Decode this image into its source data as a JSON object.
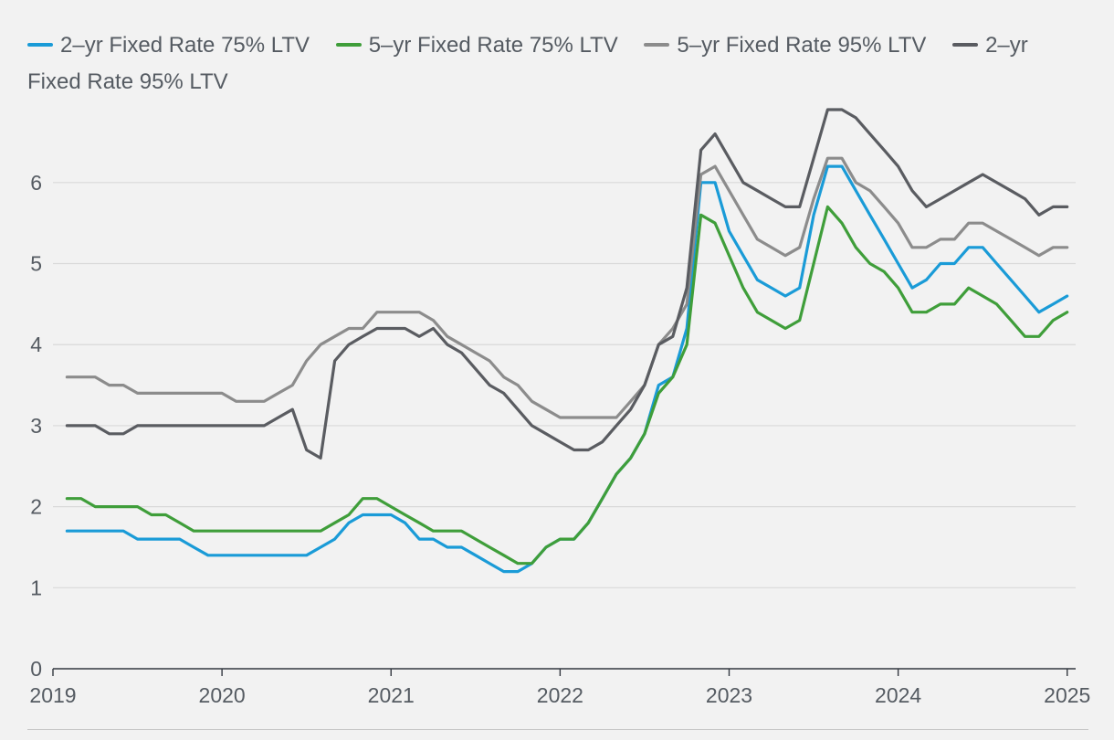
{
  "chart_data": {
    "type": "line",
    "title": "",
    "xlabel": "",
    "ylabel": "",
    "ylim": [
      0,
      6.9
    ],
    "yticks": [
      0,
      1,
      2,
      3,
      4,
      5,
      6
    ],
    "xlim": [
      2019,
      2025.05
    ],
    "xticks": [
      "2019",
      "2020",
      "2021",
      "2022",
      "2023",
      "2024",
      "2025"
    ],
    "grid": "horizontal",
    "legend_position": "top",
    "x": [
      2019.083,
      2019.167,
      2019.25,
      2019.333,
      2019.417,
      2019.5,
      2019.583,
      2019.667,
      2019.75,
      2019.833,
      2019.917,
      2020.0,
      2020.083,
      2020.167,
      2020.25,
      2020.333,
      2020.417,
      2020.5,
      2020.583,
      2020.667,
      2020.75,
      2020.833,
      2020.917,
      2021.0,
      2021.083,
      2021.167,
      2021.25,
      2021.333,
      2021.417,
      2021.5,
      2021.583,
      2021.667,
      2021.75,
      2021.833,
      2021.917,
      2022.0,
      2022.083,
      2022.167,
      2022.25,
      2022.333,
      2022.417,
      2022.5,
      2022.583,
      2022.667,
      2022.75,
      2022.833,
      2022.917,
      2023.0,
      2023.083,
      2023.167,
      2023.25,
      2023.333,
      2023.417,
      2023.5,
      2023.583,
      2023.667,
      2023.75,
      2023.833,
      2023.917,
      2024.0,
      2024.083,
      2024.167,
      2024.25,
      2024.333,
      2024.417,
      2024.5,
      2024.583,
      2024.667,
      2024.75,
      2024.833,
      2024.917,
      2025.0
    ],
    "series": [
      {
        "name": "2–yr Fixed Rate 75% LTV",
        "color": "#1a9bd7",
        "values": [
          1.7,
          1.7,
          1.7,
          1.7,
          1.7,
          1.6,
          1.6,
          1.6,
          1.6,
          1.5,
          1.4,
          1.4,
          1.4,
          1.4,
          1.4,
          1.4,
          1.4,
          1.4,
          1.5,
          1.6,
          1.8,
          1.9,
          1.9,
          1.9,
          1.8,
          1.6,
          1.6,
          1.5,
          1.5,
          1.4,
          1.3,
          1.2,
          1.2,
          1.3,
          1.5,
          1.6,
          1.6,
          1.8,
          2.1,
          2.4,
          2.6,
          2.9,
          3.5,
          3.6,
          4.2,
          6.0,
          6.0,
          5.4,
          5.1,
          4.8,
          4.7,
          4.6,
          4.7,
          5.6,
          6.2,
          6.2,
          5.9,
          5.6,
          5.3,
          5.0,
          4.7,
          4.8,
          5.0,
          5.0,
          5.2,
          5.2,
          5.0,
          4.8,
          4.6,
          4.4,
          4.5,
          4.6
        ]
      },
      {
        "name": "5–yr Fixed Rate 75% LTV",
        "color": "#3f9e3a",
        "values": [
          2.1,
          2.1,
          2.0,
          2.0,
          2.0,
          2.0,
          1.9,
          1.9,
          1.8,
          1.7,
          1.7,
          1.7,
          1.7,
          1.7,
          1.7,
          1.7,
          1.7,
          1.7,
          1.7,
          1.8,
          1.9,
          2.1,
          2.1,
          2.0,
          1.9,
          1.8,
          1.7,
          1.7,
          1.7,
          1.6,
          1.5,
          1.4,
          1.3,
          1.3,
          1.5,
          1.6,
          1.6,
          1.8,
          2.1,
          2.4,
          2.6,
          2.9,
          3.4,
          3.6,
          4.0,
          5.6,
          5.5,
          5.1,
          4.7,
          4.4,
          4.3,
          4.2,
          4.3,
          5.0,
          5.7,
          5.5,
          5.2,
          5.0,
          4.9,
          4.7,
          4.4,
          4.4,
          4.5,
          4.5,
          4.7,
          4.6,
          4.5,
          4.3,
          4.1,
          4.1,
          4.3,
          4.4
        ]
      },
      {
        "name": "5–yr Fixed Rate 95% LTV",
        "color": "#8c8c8c",
        "values": [
          3.6,
          3.6,
          3.6,
          3.5,
          3.5,
          3.4,
          3.4,
          3.4,
          3.4,
          3.4,
          3.4,
          3.4,
          3.3,
          3.3,
          3.3,
          3.4,
          3.5,
          3.8,
          4.0,
          4.1,
          4.2,
          4.2,
          4.4,
          4.4,
          4.4,
          4.4,
          4.3,
          4.1,
          4.0,
          3.9,
          3.8,
          3.6,
          3.5,
          3.3,
          3.2,
          3.1,
          3.1,
          3.1,
          3.1,
          3.1,
          3.3,
          3.5,
          4.0,
          4.2,
          4.5,
          6.1,
          6.2,
          5.9,
          5.6,
          5.3,
          5.2,
          5.1,
          5.2,
          5.8,
          6.3,
          6.3,
          6.0,
          5.9,
          5.7,
          5.5,
          5.2,
          5.2,
          5.3,
          5.3,
          5.5,
          5.5,
          5.4,
          5.3,
          5.2,
          5.1,
          5.2,
          5.2
        ]
      },
      {
        "name": "2–yr Fixed Rate 95% LTV",
        "color": "#5a5c61",
        "values": [
          3.0,
          3.0,
          3.0,
          2.9,
          2.9,
          3.0,
          3.0,
          3.0,
          3.0,
          3.0,
          3.0,
          3.0,
          3.0,
          3.0,
          3.0,
          3.1,
          3.2,
          2.7,
          2.6,
          3.8,
          4.0,
          4.1,
          4.2,
          4.2,
          4.2,
          4.1,
          4.2,
          4.0,
          3.9,
          3.7,
          3.5,
          3.4,
          3.2,
          3.0,
          2.9,
          2.8,
          2.7,
          2.7,
          2.8,
          3.0,
          3.2,
          3.5,
          4.0,
          4.1,
          4.7,
          6.4,
          6.6,
          6.3,
          6.0,
          5.9,
          5.8,
          5.7,
          5.7,
          6.3,
          6.9,
          6.9,
          6.8,
          6.6,
          6.4,
          6.2,
          5.9,
          5.7,
          5.8,
          5.9,
          6.0,
          6.1,
          6.0,
          5.9,
          5.8,
          5.6,
          5.7,
          5.7
        ]
      }
    ]
  }
}
